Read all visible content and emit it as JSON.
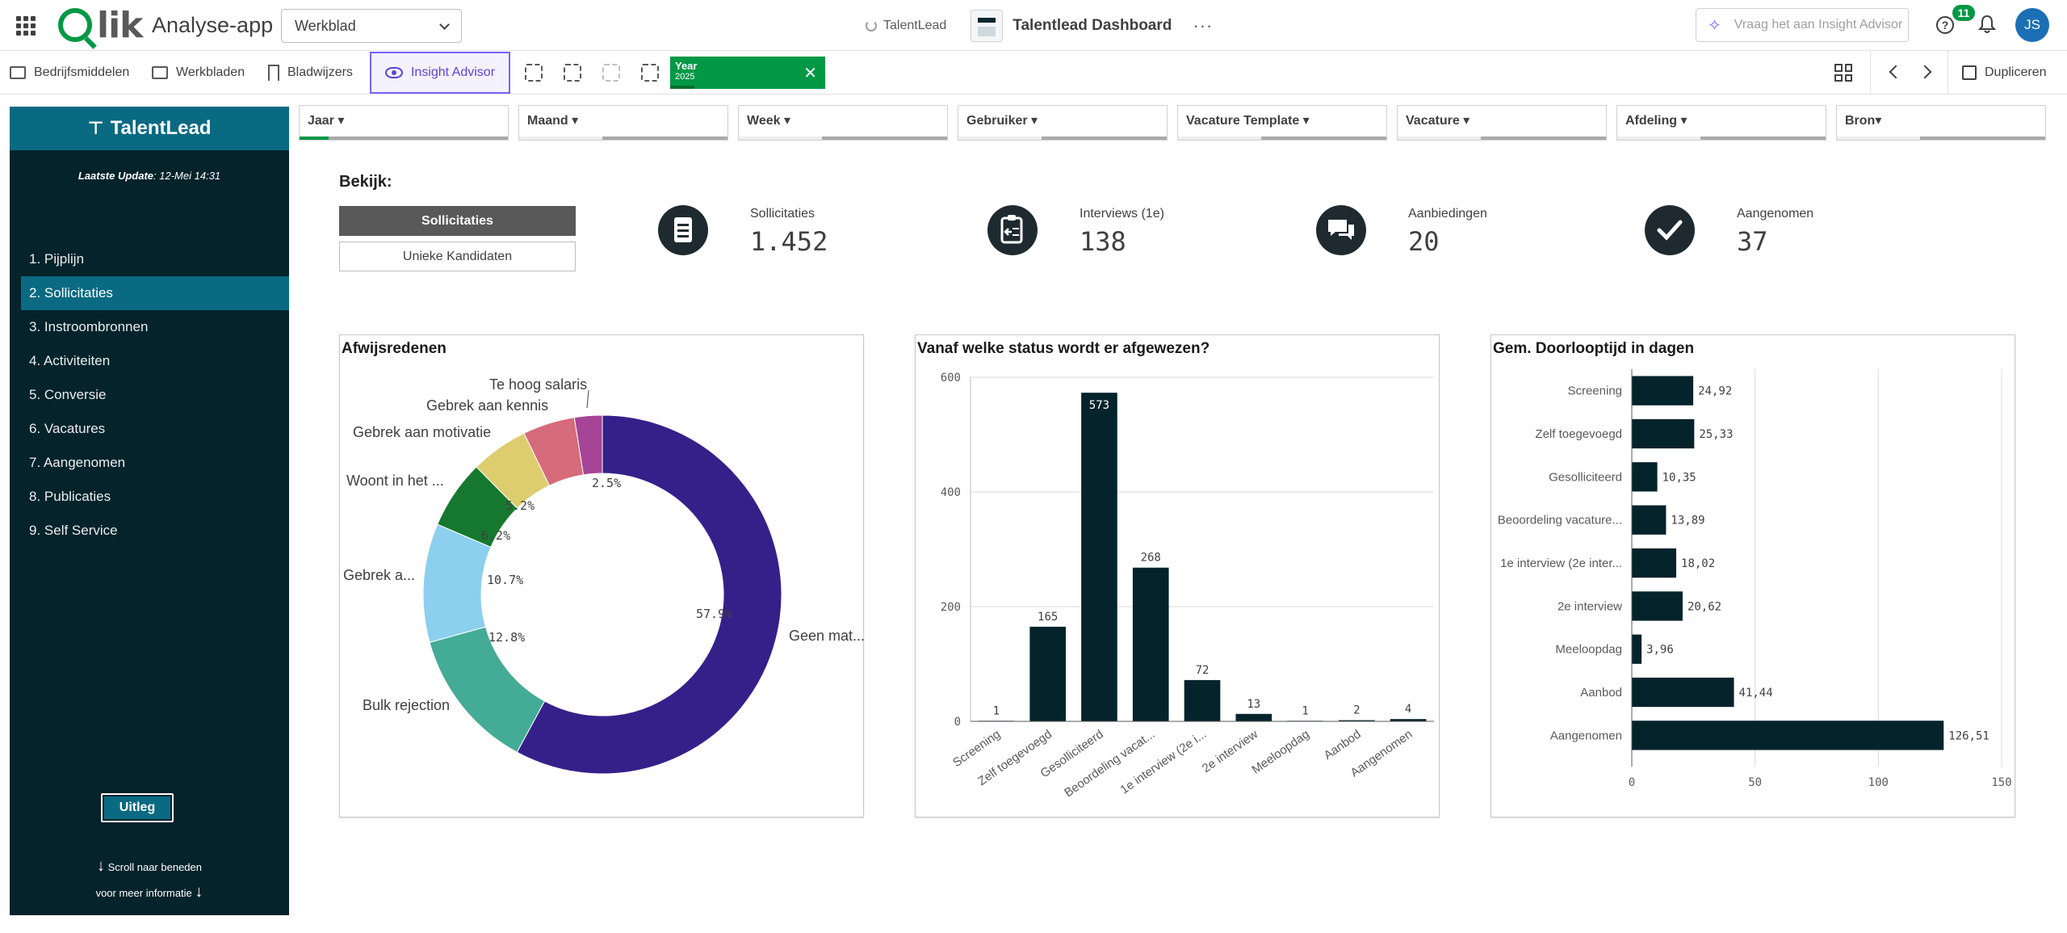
{
  "topbar": {
    "app_name": "Analyse-app",
    "sheet_select": "Werkblad",
    "space_name": "TalentLead",
    "dashboard_title": "Talentlead Dashboard",
    "more": "···",
    "insight_placeholder": "Vraag het aan Insight Advisor",
    "help": "?",
    "notification_count": "11",
    "avatar_initials": "JS"
  },
  "toolbar": {
    "assets": "Bedrijfsmiddelen",
    "sheets": "Werkbladen",
    "bookmarks": "Bladwijzers",
    "insight_advisor": "Insight Advisor",
    "selection": {
      "field": "Year",
      "value": "2025",
      "close": "✕"
    },
    "duplicate": "Dupliceren"
  },
  "sidebar": {
    "brand": "TalentLead",
    "brand_mark": "⊤",
    "update_label": "Laatste Update",
    "update_value": ": 12-Mei 14:31",
    "items": [
      "1. Pijplijn",
      "2. Sollicitaties",
      "3. Instroombronnen",
      "4. Activiteiten",
      "5. Conversie",
      "6. Vacatures",
      "7. Aangenomen",
      "8. Publicaties",
      "9. Self Service"
    ],
    "active_index": 1,
    "uitleg_button": "Uitleg",
    "scroll_line1": "Scroll naar beneden",
    "scroll_line2": "voor meer informatie",
    "arrow": "↓"
  },
  "filters": [
    {
      "label": "Jaar ▾",
      "selected_fraction": 0.14
    },
    {
      "label": "Maand ▾",
      "selected_fraction": 0
    },
    {
      "label": "Week ▾",
      "selected_fraction": 0
    },
    {
      "label": "Gebruiker ▾",
      "selected_fraction": 0
    },
    {
      "label": "Vacature Template ▾",
      "selected_fraction": 0
    },
    {
      "label": "Vacature ▾",
      "selected_fraction": 0
    },
    {
      "label": "Afdeling ▾",
      "selected_fraction": 0
    },
    {
      "label": "Bron▾",
      "selected_fraction": 0
    }
  ],
  "view": {
    "title": "Bekijk:",
    "option_active": "Sollicitaties",
    "option_inactive": "Unieke Kandidaten"
  },
  "kpis": [
    {
      "label": "Sollicitaties",
      "value": "1.452",
      "icon": "document-list-icon"
    },
    {
      "label": "Interviews (1e)",
      "value": "138",
      "icon": "clipboard-icon"
    },
    {
      "label": "Aanbiedingen",
      "value": "20",
      "icon": "chat-bubbles-icon"
    },
    {
      "label": "Aangenomen",
      "value": "37",
      "icon": "checkmark-icon"
    }
  ],
  "chart_data": [
    {
      "type": "pie",
      "title": "Afwijsredenen",
      "style": "donut",
      "slices": [
        {
          "label": "Geen mat...",
          "pct_label": "57.9%",
          "value": 57.9,
          "color": "#35208a"
        },
        {
          "label": "Bulk rejection",
          "pct_label": "12.8%",
          "value": 12.8,
          "color": "#44ab96"
        },
        {
          "label": "Gebrek a...",
          "pct_label": "10.7%",
          "value": 10.7,
          "color": "#8ccfee"
        },
        {
          "label": "Woont in het ...",
          "pct_label": "6.2%",
          "value": 6.2,
          "color": "#16782e"
        },
        {
          "label": "Gebrek aan motivatie",
          "pct_label": "5.2%",
          "value": 5.2,
          "color": "#decd6e"
        },
        {
          "label": "Gebrek aan kennis",
          "pct_label": "",
          "value": 4.7,
          "color": "#d56b7b"
        },
        {
          "label": "Te hoog salaris",
          "pct_label": "2.5%",
          "value": 2.5,
          "color": "#a64598"
        }
      ]
    },
    {
      "type": "bar",
      "title": "Vanaf welke status wordt er afgewezen?",
      "categories": [
        "Screening",
        "Zelf toegevoegd",
        "Gesolliciteerd",
        "Beoordeling vacat...",
        "1e interview (2e i...",
        "2e interview",
        "Meeloopdag",
        "Aanbod",
        "Aangenomen"
      ],
      "values": [
        1,
        165,
        573,
        268,
        72,
        13,
        1,
        2,
        4
      ],
      "ylim": [
        0,
        600
      ],
      "yticks": [
        0,
        200,
        400,
        600
      ],
      "grid": true,
      "color": "#05232b"
    },
    {
      "type": "bar",
      "orientation": "horizontal",
      "title": "Gem. Doorlooptijd in dagen",
      "categories": [
        "Screening",
        "Zelf toegevoegd",
        "Gesolliciteerd",
        "Beoordeling vacature...",
        "1e interview (2e inter...",
        "2e interview",
        "Meeloopdag",
        "Aanbod",
        "Aangenomen"
      ],
      "values": [
        24.92,
        25.33,
        10.35,
        13.89,
        18.02,
        20.62,
        3.96,
        41.44,
        126.51
      ],
      "value_labels": [
        "24,92",
        "25,33",
        "10,35",
        "13,89",
        "18,02",
        "20,62",
        "3,96",
        "41,44",
        "126,51"
      ],
      "xlim": [
        0,
        150
      ],
      "xticks": [
        0,
        50,
        100,
        150
      ],
      "grid": true,
      "color": "#05232b"
    }
  ]
}
